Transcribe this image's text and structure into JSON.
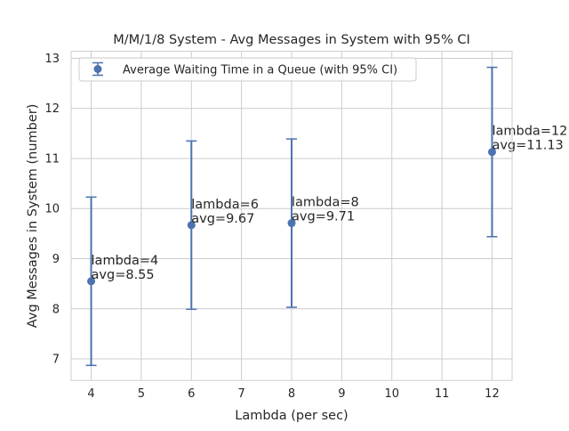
{
  "chart_data": {
    "type": "scatter",
    "title": "M/M/1/8 System - Avg Messages in System with 95% CI",
    "xlabel": "Lambda (per sec)",
    "ylabel": "Avg Messages in System (number)",
    "xlim": [
      3.6,
      12.4
    ],
    "ylim": [
      6.57,
      13.14
    ],
    "x_ticks": [
      4,
      5,
      6,
      7,
      8,
      9,
      10,
      11,
      12
    ],
    "y_ticks": [
      7,
      8,
      9,
      10,
      11,
      12,
      13
    ],
    "grid": true,
    "legend_position": "upper left",
    "series": [
      {
        "name": "Average Waiting Time in a Queue (with 95% CI)",
        "color": "#4c72b0",
        "marker": "circle",
        "errorbars": true,
        "points": [
          {
            "x": 4,
            "y": 8.55,
            "ci_low": 6.87,
            "ci_high": 10.23
          },
          {
            "x": 6,
            "y": 9.67,
            "ci_low": 7.99,
            "ci_high": 11.35
          },
          {
            "x": 8,
            "y": 9.71,
            "ci_low": 8.03,
            "ci_high": 11.39
          },
          {
            "x": 12,
            "y": 11.13,
            "ci_low": 9.44,
            "ci_high": 12.82
          }
        ]
      }
    ],
    "annotations": [
      {
        "x": 4,
        "y": 8.55,
        "line1": "lambda=4",
        "line2": "avg=8.55"
      },
      {
        "x": 6,
        "y": 9.67,
        "line1": "lambda=6",
        "line2": "avg=9.67"
      },
      {
        "x": 8,
        "y": 9.71,
        "line1": "lambda=8",
        "line2": "avg=9.71"
      },
      {
        "x": 12,
        "y": 11.13,
        "line1": "lambda=12",
        "line2": "avg=11.13"
      }
    ],
    "colors": {
      "grid": "#cccccc",
      "spine": "#cccccc",
      "text": "#262626",
      "legend_border": "#cccccc"
    }
  }
}
